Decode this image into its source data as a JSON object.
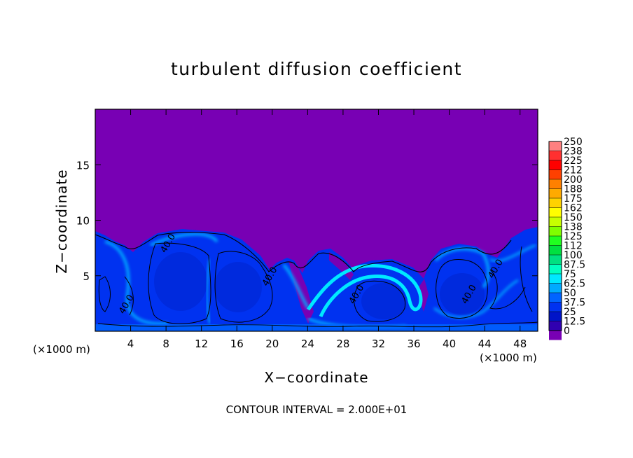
{
  "chart_data": {
    "type": "heatmap",
    "title": "turbulent diffusion coefficient",
    "xlabel": "X−coordinate",
    "ylabel": "Z−coordinate",
    "x_unit_left": "(×1000 m)",
    "x_unit_right": "(×1000 m)",
    "xlim": [
      0,
      50
    ],
    "ylim": [
      0,
      20
    ],
    "x_ticks": [
      4,
      8,
      12,
      16,
      20,
      24,
      28,
      32,
      36,
      40,
      44,
      48
    ],
    "y_ticks": [
      5,
      10,
      15
    ],
    "footer": "CONTOUR INTERVAL = 2.000E+01",
    "contour_labels": [
      {
        "text": "40.0",
        "x": 8.5,
        "y": 7.8
      },
      {
        "text": "40.0",
        "x": 3.8,
        "y": 2.3
      },
      {
        "text": "40.0",
        "x": 20.0,
        "y": 4.8
      },
      {
        "text": "40.0",
        "x": 29.8,
        "y": 3.2
      },
      {
        "text": "40.0",
        "x": 42.5,
        "y": 3.2
      },
      {
        "text": "40.0",
        "x": 45.5,
        "y": 5.5
      }
    ],
    "colorbar": {
      "labels": [
        "250",
        "238",
        "225",
        "212",
        "200",
        "188",
        "175",
        "162",
        "150",
        "138",
        "125",
        "112",
        "100",
        "87.5",
        "75",
        "62.5",
        "50",
        "37.5",
        "25",
        "12.5",
        "0"
      ],
      "colors": [
        "#ff8080",
        "#ff3030",
        "#ff0000",
        "#ff4000",
        "#ff8000",
        "#ffaa00",
        "#ffd200",
        "#ffff00",
        "#c8ff00",
        "#80ff00",
        "#20ff20",
        "#00e040",
        "#00e080",
        "#00ffc0",
        "#00e8ff",
        "#00aaff",
        "#0064ff",
        "#0032f0",
        "#0014c8",
        "#3000b0",
        "#7800b4"
      ]
    },
    "background_color": "#7800b4",
    "dominant_field_color": "#0032f0"
  }
}
